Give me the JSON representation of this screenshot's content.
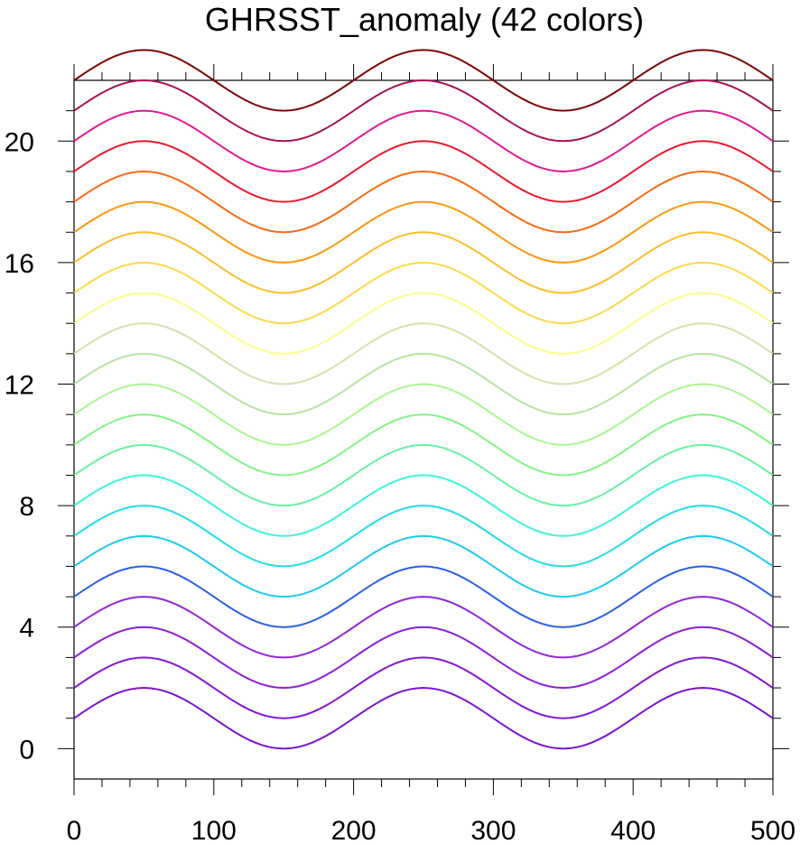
{
  "chart_data": {
    "type": "line",
    "title": "GHRSST_anomaly (42 colors)",
    "xlabel": "",
    "ylabel": "",
    "xlim": [
      0,
      500
    ],
    "ylim": [
      -1,
      22
    ],
    "x_ticks": [
      0,
      100,
      200,
      300,
      400,
      500
    ],
    "y_ticks": [
      0,
      4,
      8,
      12,
      16,
      20
    ],
    "x_minor_step": 20,
    "y_minor_step": 1,
    "grid": false,
    "legend": "none",
    "curve": {
      "form": "offset + sin(x * pi / 100) + 1",
      "x_step": 5
    },
    "series": [
      {
        "offset": 0,
        "color": "#7a12cf"
      },
      {
        "offset": 1,
        "color": "#8515d6"
      },
      {
        "offset": 2,
        "color": "#8d1fd8"
      },
      {
        "offset": 3,
        "color": "#9228d8"
      },
      {
        "offset": 4,
        "color": "#2a5fe6"
      },
      {
        "offset": 5,
        "color": "#1ec8ee"
      },
      {
        "offset": 6,
        "color": "#22dde4"
      },
      {
        "offset": 7,
        "color": "#3ef5d8"
      },
      {
        "offset": 8,
        "color": "#66f2a4"
      },
      {
        "offset": 9,
        "color": "#82f584"
      },
      {
        "offset": 10,
        "color": "#a8f88e"
      },
      {
        "offset": 11,
        "color": "#b7e3a0"
      },
      {
        "offset": 12,
        "color": "#d8e0aa"
      },
      {
        "offset": 13,
        "color": "#fcfc88"
      },
      {
        "offset": 14,
        "color": "#fcd84a"
      },
      {
        "offset": 15,
        "color": "#fbbf2c"
      },
      {
        "offset": 16,
        "color": "#fd9810"
      },
      {
        "offset": 17,
        "color": "#fb6a12"
      },
      {
        "offset": 18,
        "color": "#e91930"
      },
      {
        "offset": 19,
        "color": "#e0198f"
      },
      {
        "offset": 20,
        "color": "#a81056"
      },
      {
        "offset": 21,
        "color": "#7d0606"
      }
    ]
  }
}
